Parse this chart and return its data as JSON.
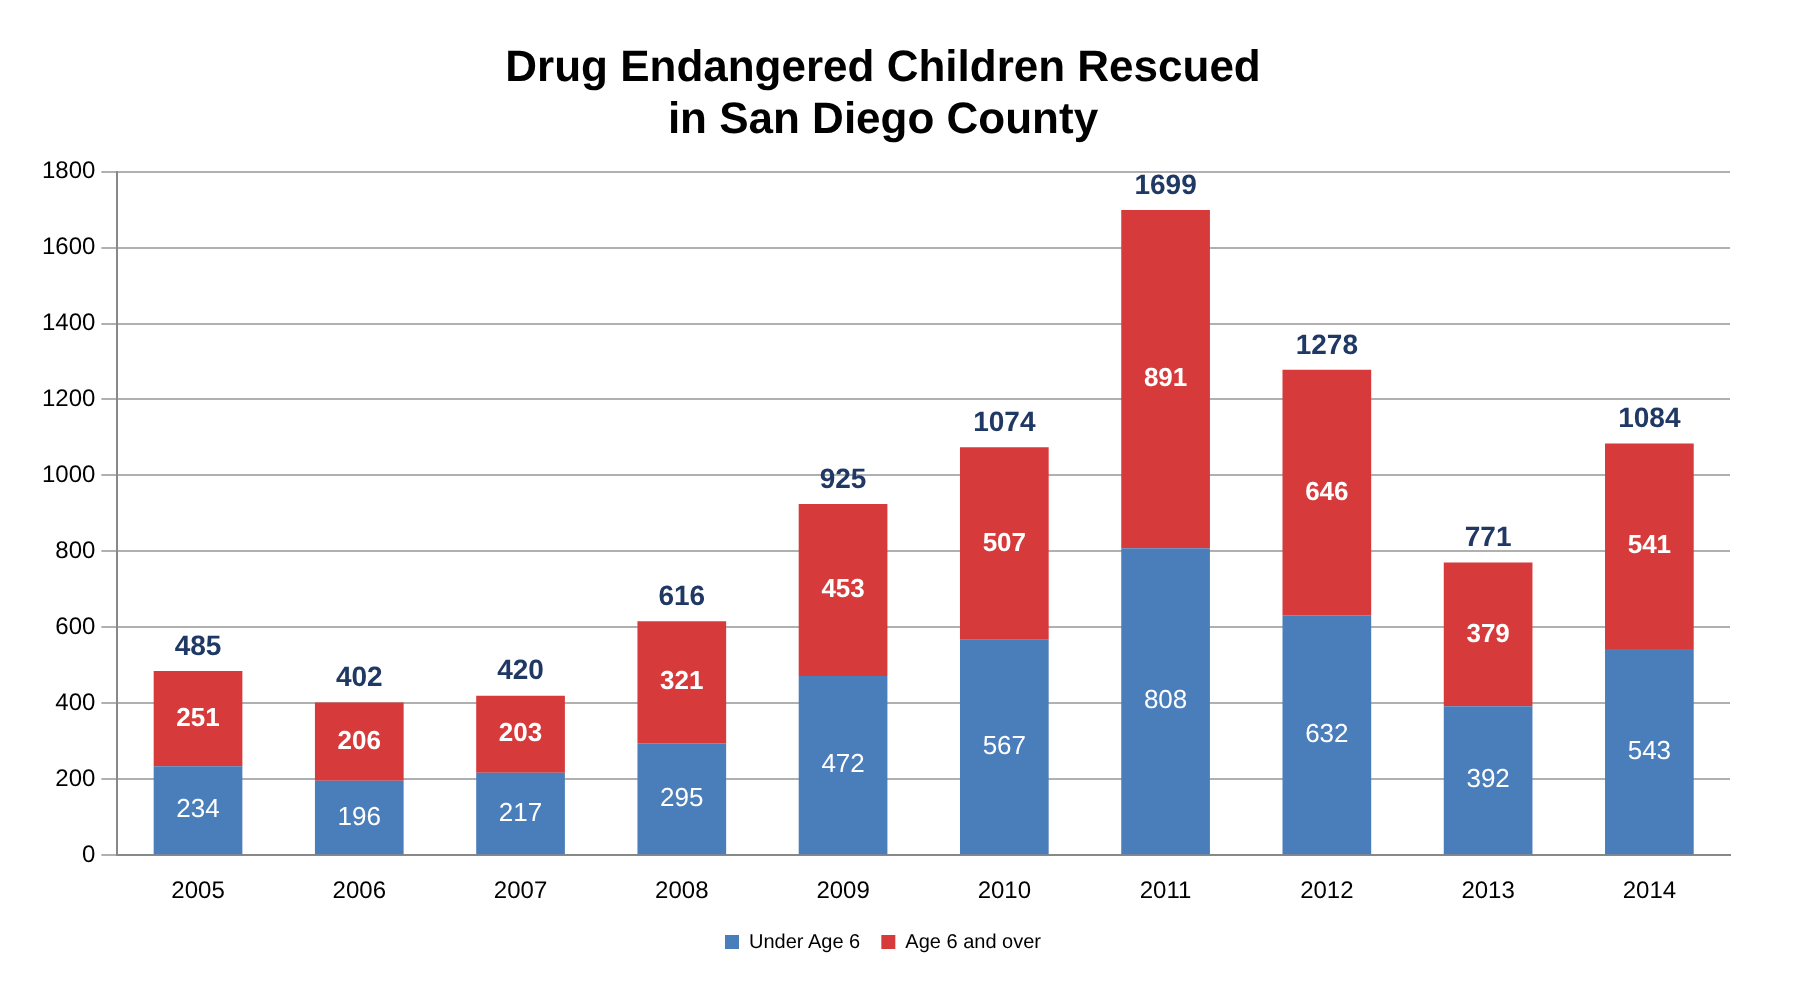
{
  "chart_data": {
    "type": "bar",
    "title": "Drug Endangered Children Rescued\nin San Diego County",
    "categories": [
      "2005",
      "2006",
      "2007",
      "2008",
      "2009",
      "2010",
      "2011",
      "2012",
      "2013",
      "2014"
    ],
    "series": [
      {
        "name": "Under Age 6",
        "color": "#4a7ebb",
        "values": [
          234,
          196,
          217,
          295,
          472,
          567,
          808,
          632,
          392,
          543
        ]
      },
      {
        "name": "Age 6 and over",
        "color": "#d63a3a",
        "values": [
          251,
          206,
          203,
          321,
          453,
          507,
          891,
          646,
          379,
          541
        ]
      }
    ],
    "stacked": true,
    "data_labels": true,
    "totals": [
      "485",
      "402",
      "420",
      "616",
      "925",
      "1074",
      "1699",
      "1278",
      "771",
      "1084"
    ],
    "ylim": [
      0,
      1800
    ],
    "yticks": [
      0,
      200,
      400,
      600,
      800,
      1000,
      1200,
      1400,
      1600,
      1800
    ],
    "grid": "y",
    "legend": "bottom"
  }
}
